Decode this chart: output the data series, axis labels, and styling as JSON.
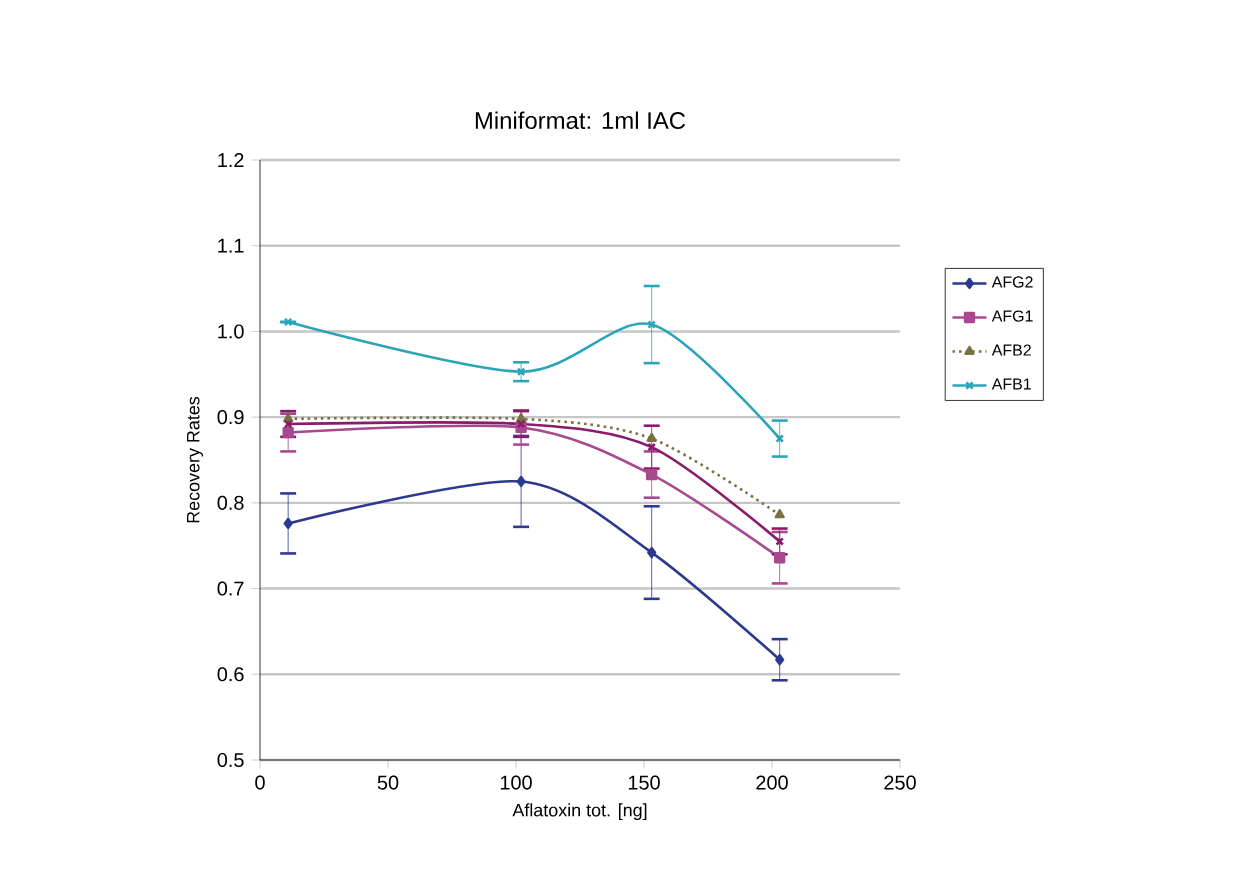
{
  "chart_data": {
    "type": "line",
    "title": "Miniformat: 1ml IAC",
    "xlabel": "Aflatoxin tot. [ng]",
    "ylabel": "Recovery Rates",
    "x": [
      11,
      102,
      153,
      203
    ],
    "xlim": [
      0,
      250
    ],
    "xticks": [
      0,
      50,
      100,
      150,
      200,
      250
    ],
    "ylim": [
      0.5,
      1.2
    ],
    "yticks": [
      {
        "value": 0.5,
        "label": "0.5"
      },
      {
        "value": 0.6,
        "label": "0.6"
      },
      {
        "value": 0.7,
        "label": "0.7"
      },
      {
        "value": 0.8,
        "label": "0.8"
      },
      {
        "value": 0.9,
        "label": "0.9"
      },
      {
        "value": 1.0,
        "label": "1.0"
      },
      {
        "value": 1.1,
        "label": "1.1"
      },
      {
        "value": 1.2,
        "label": "1.2"
      }
    ],
    "grid": "y",
    "legend": "right",
    "series": [
      {
        "name": "AFG2",
        "color": "#2b3990",
        "marker": "diamond",
        "line_style": "solid",
        "values": [
          0.776,
          0.825,
          0.742,
          0.617
        ],
        "errors": [
          0.035,
          0.053,
          0.054,
          0.024
        ]
      },
      {
        "name": "AFG1",
        "color": "#a8488f",
        "marker": "square",
        "line_style": "solid",
        "values": [
          0.882,
          0.888,
          0.833,
          0.736
        ],
        "errors": [
          0.022,
          0.02,
          0.027,
          0.03
        ]
      },
      {
        "name": "AFB2",
        "color": "#7a7040",
        "marker": "triangle",
        "line_style": "dotted",
        "values": [
          0.898,
          0.898,
          0.875,
          0.786
        ]
      },
      {
        "name": "AFB1",
        "color": "#2aa5b8",
        "marker": "cross",
        "line_style": "solid",
        "values": [
          1.011,
          0.953,
          1.008,
          0.875
        ],
        "errors": [
          null,
          0.011,
          0.045,
          0.021
        ]
      },
      {
        "color": "#8b1a6b",
        "marker": "cross",
        "line_style": "solid",
        "values": [
          0.892,
          0.892,
          0.865,
          0.755
        ],
        "errors": [
          0.015,
          0.015,
          0.025,
          0.015
        ]
      }
    ]
  }
}
